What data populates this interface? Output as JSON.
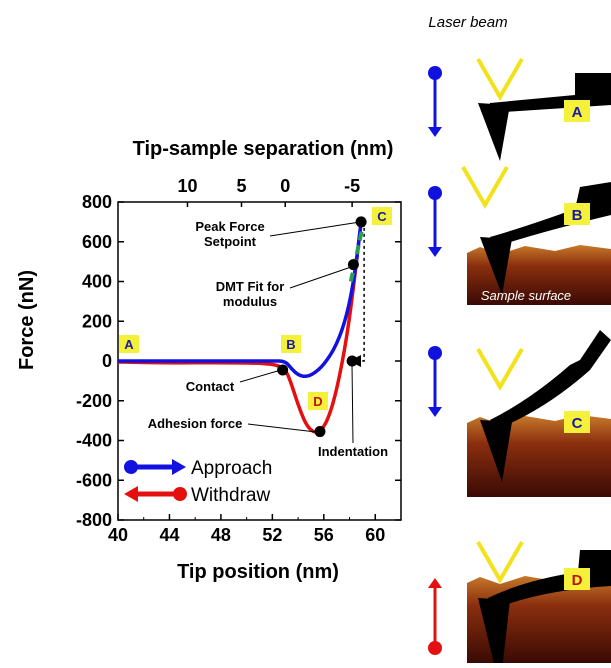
{
  "laser_label": "Laser beam",
  "sample_label": "Sample surface",
  "chart_data": {
    "type": "line",
    "title": "",
    "xlabel": "Tip position (nm)",
    "ylabel": "Force (nN)",
    "top_axis_label": "Tip-sample separation (nm)",
    "xlim": [
      40,
      62
    ],
    "ylim": [
      -800,
      800
    ],
    "x_ticks": [
      "40",
      "44",
      "48",
      "52",
      "56",
      "60"
    ],
    "y_ticks": [
      "800",
      "600",
      "400",
      "200",
      "0",
      "-200",
      "-400",
      "-600",
      "-800"
    ],
    "top_ticks": [
      "10",
      "5",
      "0",
      "-5"
    ],
    "legend": [
      "Approach",
      "Withdraw"
    ],
    "series": [
      {
        "name": "Approach",
        "color": "#1212e0",
        "x": [
          40,
          44,
          48,
          52,
          53,
          53.5,
          54,
          54.6,
          55.2,
          56,
          57,
          57.8,
          58.4,
          58.9
        ],
        "y": [
          0,
          0,
          0,
          0,
          0,
          -40,
          -70,
          -80,
          -65,
          -20,
          80,
          230,
          430,
          700
        ]
      },
      {
        "name": "Withdraw",
        "color": "#e41010",
        "x": [
          40,
          44,
          48,
          52,
          53,
          53.4,
          54,
          54.6,
          55.2,
          55.7,
          56.3,
          57,
          57.8,
          58.4,
          58.9
        ],
        "y": [
          -5,
          -10,
          -8,
          -12,
          -40,
          -100,
          -220,
          -320,
          -360,
          -355,
          -300,
          -150,
          120,
          420,
          700
        ]
      }
    ],
    "points": {
      "contact": [
        52.8,
        -45
      ],
      "adhesion": [
        55.7,
        -355
      ],
      "indentation": [
        58.2,
        0
      ],
      "dmt": [
        58.3,
        485
      ],
      "peak": [
        58.9,
        700
      ]
    },
    "dmt_fit": [
      [
        58.1,
        400
      ],
      [
        59.1,
        700
      ]
    ],
    "annotations": {
      "peak": [
        "Peak Force",
        "Setpoint"
      ],
      "dmt": [
        "DMT Fit for",
        "modulus"
      ],
      "contact": "Contact",
      "adhesion": "Adhesion force",
      "indentation": "Indentation"
    },
    "stage_labels": {
      "A": "A",
      "B": "B",
      "C": "C",
      "D": "D"
    }
  },
  "panels": [
    {
      "label": "A",
      "direction": "down"
    },
    {
      "label": "B",
      "direction": "down"
    },
    {
      "label": "C",
      "direction": "down"
    },
    {
      "label": "D",
      "direction": "up"
    }
  ]
}
